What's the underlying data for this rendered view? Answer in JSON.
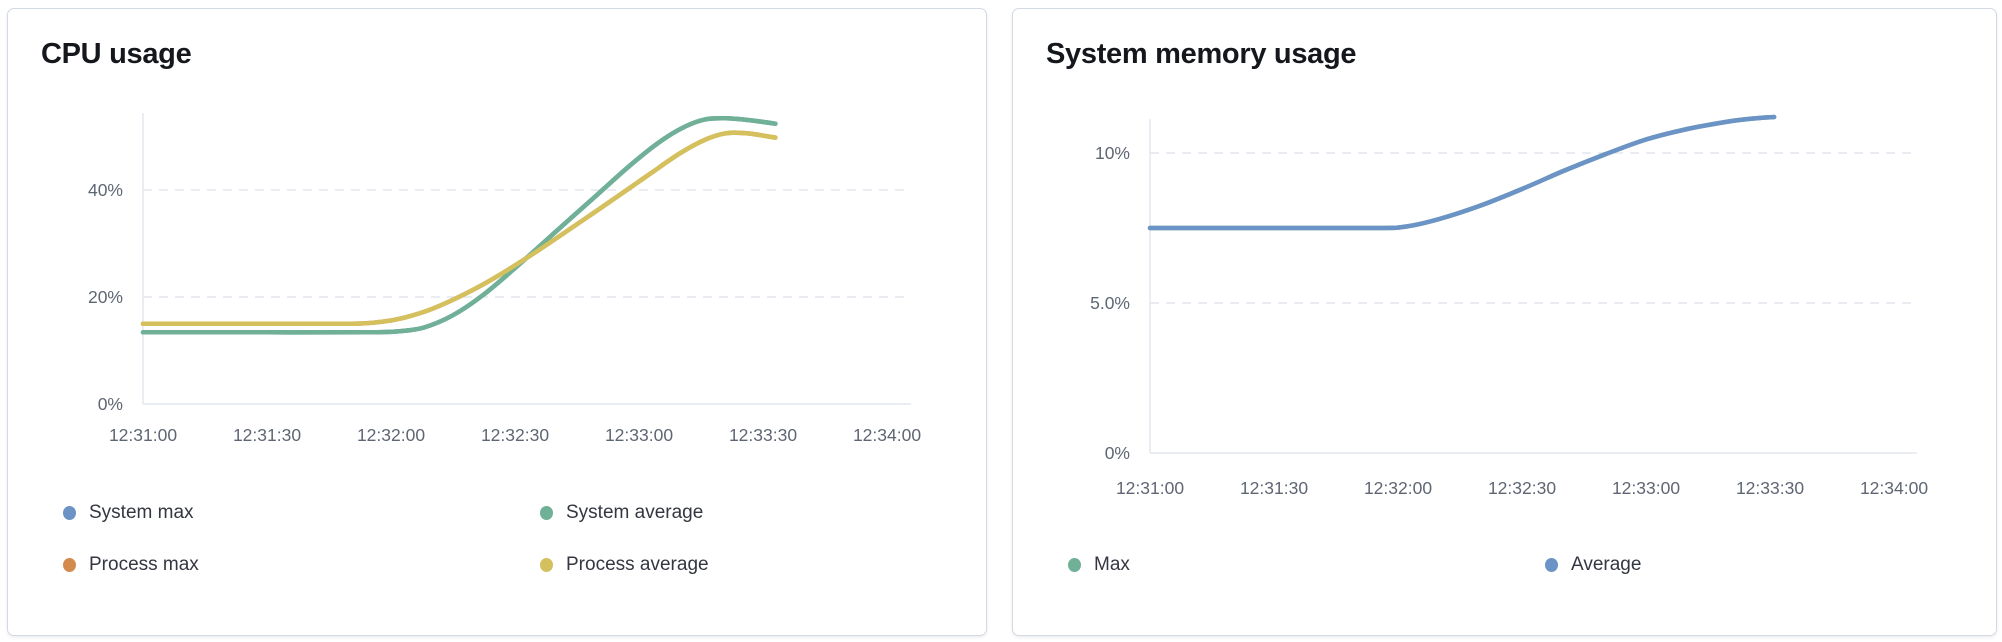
{
  "chart_data": [
    {
      "type": "line",
      "title": "CPU usage",
      "xlabel": "",
      "ylabel": "",
      "grid": "horizontal-dashed",
      "legend_position": "bottom",
      "x_tick_labels": [
        "12:31:00",
        "12:31:30",
        "12:32:00",
        "12:32:30",
        "12:33:00",
        "12:33:30",
        "12:34:00"
      ],
      "y_ticks": [
        {
          "label": "0%",
          "value": 0
        },
        {
          "label": "20%",
          "value": 20
        },
        {
          "label": "40%",
          "value": 40
        }
      ],
      "ylim": [
        0,
        56
      ],
      "x_domain_seconds": [
        0,
        180
      ],
      "series": [
        {
          "name": "System max",
          "color": "#6b93c5",
          "points": [
            [
              0,
              13.4
            ],
            [
              30,
              13.4
            ],
            [
              55,
              13.4
            ],
            [
              62,
              13.6
            ],
            [
              68,
              14.3
            ],
            [
              75,
              16.6
            ],
            [
              82,
              20.2
            ],
            [
              90,
              25.4
            ],
            [
              100,
              32.3
            ],
            [
              110,
              39.2
            ],
            [
              118,
              44.7
            ],
            [
              125,
              49.0
            ],
            [
              131,
              51.8
            ],
            [
              136,
              53.2
            ],
            [
              141,
              53.4
            ],
            [
              146,
              53.1
            ],
            [
              153,
              52.4
            ]
          ]
        },
        {
          "name": "Process max",
          "color": "#d28b4d",
          "points": [
            [
              0,
              15.0
            ],
            [
              30,
              15.0
            ],
            [
              50,
              15.0
            ],
            [
              57,
              15.3
            ],
            [
              63,
              16.1
            ],
            [
              70,
              17.8
            ],
            [
              78,
              20.6
            ],
            [
              86,
              24.0
            ],
            [
              95,
              28.4
            ],
            [
              105,
              33.6
            ],
            [
              115,
              38.9
            ],
            [
              123,
              43.2
            ],
            [
              130,
              46.9
            ],
            [
              136,
              49.4
            ],
            [
              141,
              50.6
            ],
            [
              146,
              50.6
            ],
            [
              153,
              49.8
            ]
          ]
        },
        {
          "name": "System average",
          "color": "#6fb096",
          "points": [
            [
              0,
              13.4
            ],
            [
              30,
              13.4
            ],
            [
              55,
              13.4
            ],
            [
              62,
              13.6
            ],
            [
              68,
              14.3
            ],
            [
              75,
              16.6
            ],
            [
              82,
              20.2
            ],
            [
              90,
              25.4
            ],
            [
              100,
              32.3
            ],
            [
              110,
              39.2
            ],
            [
              118,
              44.7
            ],
            [
              125,
              49.0
            ],
            [
              131,
              51.8
            ],
            [
              136,
              53.2
            ],
            [
              141,
              53.4
            ],
            [
              146,
              53.1
            ],
            [
              153,
              52.4
            ]
          ]
        },
        {
          "name": "Process average",
          "color": "#d5c05e",
          "points": [
            [
              0,
              15.0
            ],
            [
              30,
              15.0
            ],
            [
              50,
              15.0
            ],
            [
              57,
              15.3
            ],
            [
              63,
              16.1
            ],
            [
              70,
              17.8
            ],
            [
              78,
              20.6
            ],
            [
              86,
              24.0
            ],
            [
              95,
              28.4
            ],
            [
              105,
              33.6
            ],
            [
              115,
              38.9
            ],
            [
              123,
              43.2
            ],
            [
              130,
              46.9
            ],
            [
              136,
              49.4
            ],
            [
              141,
              50.6
            ],
            [
              146,
              50.6
            ],
            [
              153,
              49.8
            ]
          ]
        }
      ],
      "legend": [
        {
          "label": "System max",
          "color": "#6b93c5"
        },
        {
          "label": "System average",
          "color": "#6fb096"
        },
        {
          "label": "Process max",
          "color": "#d28b4d"
        },
        {
          "label": "Process average",
          "color": "#d5c05e"
        }
      ]
    },
    {
      "type": "line",
      "title": "System memory usage",
      "xlabel": "",
      "ylabel": "",
      "grid": "horizontal-dashed",
      "legend_position": "bottom",
      "x_tick_labels": [
        "12:31:00",
        "12:31:30",
        "12:32:00",
        "12:32:30",
        "12:33:00",
        "12:33:30",
        "12:34:00"
      ],
      "y_ticks": [
        {
          "label": "0%",
          "value": 0
        },
        {
          "label": "5.0%",
          "value": 5
        },
        {
          "label": "10%",
          "value": 10
        }
      ],
      "ylim": [
        0,
        11.6
      ],
      "x_domain_seconds": [
        0,
        180
      ],
      "series": [
        {
          "name": "Max",
          "color": "#6fb096",
          "points": [
            [
              0,
              7.5
            ],
            [
              30,
              7.5
            ],
            [
              55,
              7.5
            ],
            [
              62,
              7.55
            ],
            [
              70,
              7.8
            ],
            [
              80,
              8.25
            ],
            [
              90,
              8.8
            ],
            [
              100,
              9.4
            ],
            [
              110,
              9.95
            ],
            [
              120,
              10.45
            ],
            [
              130,
              10.8
            ],
            [
              140,
              11.05
            ],
            [
              146,
              11.15
            ],
            [
              151,
              11.2
            ]
          ]
        },
        {
          "name": "Average",
          "color": "#6b93c5",
          "points": [
            [
              0,
              7.5
            ],
            [
              30,
              7.5
            ],
            [
              55,
              7.5
            ],
            [
              62,
              7.55
            ],
            [
              70,
              7.8
            ],
            [
              80,
              8.25
            ],
            [
              90,
              8.8
            ],
            [
              100,
              9.4
            ],
            [
              110,
              9.95
            ],
            [
              120,
              10.45
            ],
            [
              130,
              10.8
            ],
            [
              140,
              11.05
            ],
            [
              146,
              11.15
            ],
            [
              151,
              11.2
            ]
          ]
        }
      ],
      "legend": [
        {
          "label": "Max",
          "color": "#6fb096"
        },
        {
          "label": "Average",
          "color": "#6b93c5"
        }
      ]
    }
  ],
  "style": {
    "grid_color": "#e2e6ec",
    "axis_color": "#e4e8ee",
    "tick_text_color": "#5f6673",
    "legend_text_color": "#343741",
    "title_color": "#14171c",
    "card_border_color": "#d3dae6"
  }
}
